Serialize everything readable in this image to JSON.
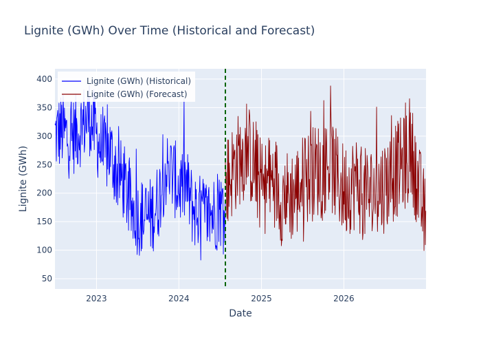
{
  "chart_data": {
    "type": "line",
    "title": "Lignite (GWh) Over Time (Historical and Forecast)",
    "xlabel": "Date",
    "ylabel": "Lignite (GWh)",
    "xlim": [
      "2022-07-01",
      "2026-12-31"
    ],
    "ylim": [
      32,
      418
    ],
    "x_ticks": [
      "2023-01-01",
      "2024-01-01",
      "2025-01-01",
      "2026-01-01"
    ],
    "x_tick_labels": [
      "2023",
      "2024",
      "2025",
      "2026"
    ],
    "y_ticks": [
      50,
      100,
      150,
      200,
      250,
      300,
      350,
      400
    ],
    "grid": true,
    "legend": "top-left",
    "forecast_start": "2024-07-25",
    "series": [
      {
        "name": "Lignite (GWh) (Historical)",
        "color": "#0000ff",
        "start": "2022-07-01",
        "end": "2024-07-25",
        "points": [
          [
            "2022-07-01",
            300
          ],
          [
            "2022-08-01",
            310
          ],
          [
            "2022-09-01",
            295
          ],
          [
            "2022-10-01",
            305
          ],
          [
            "2022-11-01",
            320
          ],
          [
            "2022-12-01",
            335
          ],
          [
            "2023-01-01",
            300
          ],
          [
            "2023-02-01",
            265
          ],
          [
            "2023-03-01",
            275
          ],
          [
            "2023-04-01",
            235
          ],
          [
            "2023-05-01",
            220
          ],
          [
            "2023-06-01",
            175
          ],
          [
            "2023-07-01",
            160
          ],
          [
            "2023-08-01",
            155
          ],
          [
            "2023-09-01",
            160
          ],
          [
            "2023-10-01",
            185
          ],
          [
            "2023-11-01",
            240
          ],
          [
            "2023-12-01",
            235
          ],
          [
            "2024-01-01",
            210
          ],
          [
            "2024-02-01",
            215
          ],
          [
            "2024-03-01",
            175
          ],
          [
            "2024-04-01",
            165
          ],
          [
            "2024-05-01",
            160
          ],
          [
            "2024-06-01",
            165
          ],
          [
            "2024-07-25",
            175
          ]
        ]
      },
      {
        "name": "Lignite (GWh) (Forecast)",
        "color": "#8b0000",
        "start": "2024-07-25",
        "end": "2026-12-31",
        "points": [
          [
            "2024-07-25",
            215
          ],
          [
            "2024-09-01",
            245
          ],
          [
            "2024-10-01",
            265
          ],
          [
            "2024-11-01",
            275
          ],
          [
            "2024-12-01",
            245
          ],
          [
            "2025-01-01",
            210
          ],
          [
            "2025-02-01",
            215
          ],
          [
            "2025-03-01",
            225
          ],
          [
            "2025-04-01",
            190
          ],
          [
            "2025-05-01",
            195
          ],
          [
            "2025-06-01",
            200
          ],
          [
            "2025-07-01",
            220
          ],
          [
            "2025-08-01",
            230
          ],
          [
            "2025-09-01",
            240
          ],
          [
            "2025-10-01",
            245
          ],
          [
            "2025-11-01",
            255
          ],
          [
            "2025-12-01",
            225
          ],
          [
            "2026-01-01",
            205
          ],
          [
            "2026-02-01",
            215
          ],
          [
            "2026-03-01",
            220
          ],
          [
            "2026-04-01",
            195
          ],
          [
            "2026-05-01",
            200
          ],
          [
            "2026-06-01",
            205
          ],
          [
            "2026-07-01",
            215
          ],
          [
            "2026-08-01",
            230
          ],
          [
            "2026-09-01",
            245
          ],
          [
            "2026-10-01",
            255
          ],
          [
            "2026-11-01",
            265
          ],
          [
            "2026-12-31",
            140
          ]
        ]
      }
    ]
  }
}
